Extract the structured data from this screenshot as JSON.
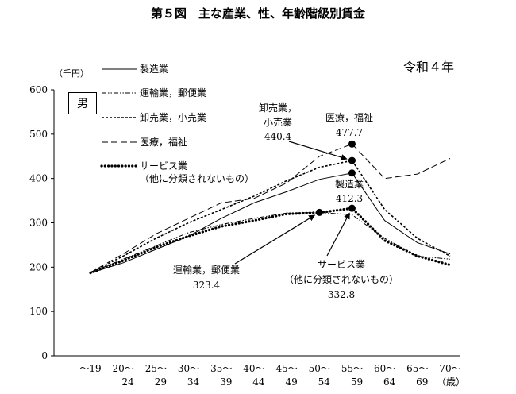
{
  "chart_data": {
    "type": "line",
    "title": "第５図　主な産業、性、年齢階級別賃金",
    "year_label": "令和４年",
    "gender": "男",
    "ylabel": "（千円）",
    "xlabel_unit": "（歳）",
    "ylim": [
      0,
      600
    ],
    "yticks": [
      "0",
      "100",
      "200",
      "300",
      "400",
      "500",
      "600"
    ],
    "categories": [
      {
        "top": "～19",
        "bottom": ""
      },
      {
        "top": "20～",
        "bottom": "24"
      },
      {
        "top": "25～",
        "bottom": "29"
      },
      {
        "top": "30～",
        "bottom": "34"
      },
      {
        "top": "35～",
        "bottom": "39"
      },
      {
        "top": "40～",
        "bottom": "44"
      },
      {
        "top": "45～",
        "bottom": "49"
      },
      {
        "top": "50～",
        "bottom": "54"
      },
      {
        "top": "55～",
        "bottom": "59"
      },
      {
        "top": "60～",
        "bottom": "64"
      },
      {
        "top": "65～",
        "bottom": "69"
      },
      {
        "top": "70～",
        "bottom": ""
      }
    ],
    "series": [
      {
        "name": "製造業",
        "style": "solid",
        "values": [
          187,
          210,
          240,
          270,
          310,
          345,
          370,
          398,
          412.3,
          305,
          255,
          230
        ]
      },
      {
        "name": "運輸業，郵便業",
        "style": "dashdotdot",
        "values": [
          188,
          218,
          248,
          278,
          296,
          310,
          322,
          323.4,
          318,
          265,
          225,
          218
        ]
      },
      {
        "name": "卸売業，小売業",
        "style": "dashed-fine",
        "values": [
          188,
          225,
          265,
          300,
          330,
          360,
          395,
          425,
          440.4,
          330,
          265,
          225
        ]
      },
      {
        "name": "医療，福祉",
        "style": "dashed",
        "values": [
          188,
          230,
          275,
          310,
          345,
          355,
          390,
          450,
          477.7,
          400,
          410,
          445
        ]
      },
      {
        "name": "サービス業\n（他に分類されないもの）",
        "style": "dotted-bold",
        "values": [
          187,
          215,
          245,
          270,
          292,
          305,
          320,
          323,
          332.8,
          260,
          225,
          205
        ]
      }
    ],
    "legend": {
      "items": [
        {
          "label": "製造業"
        },
        {
          "label": "運輸業，郵便業"
        },
        {
          "label": "卸売業，小売業"
        },
        {
          "label": "医療，福祉"
        },
        {
          "label": "サービス業",
          "label2": "（他に分類されないもの）"
        }
      ]
    },
    "annotations": [
      {
        "lines": [
          "卸売業，",
          "小売業",
          "440.4"
        ],
        "series": 2,
        "index": 8
      },
      {
        "lines": [
          "医療，福祉",
          "477.7"
        ],
        "series": 3,
        "index": 8
      },
      {
        "lines": [
          "製造業",
          "412.3"
        ],
        "series": 0,
        "index": 8
      },
      {
        "lines": [
          "運輸業，郵便業",
          "323.4"
        ],
        "series": 1,
        "index": 7
      },
      {
        "lines": [
          "サービス業",
          "（他に分類されないもの）",
          "332.8"
        ],
        "series": 4,
        "index": 8
      }
    ]
  }
}
